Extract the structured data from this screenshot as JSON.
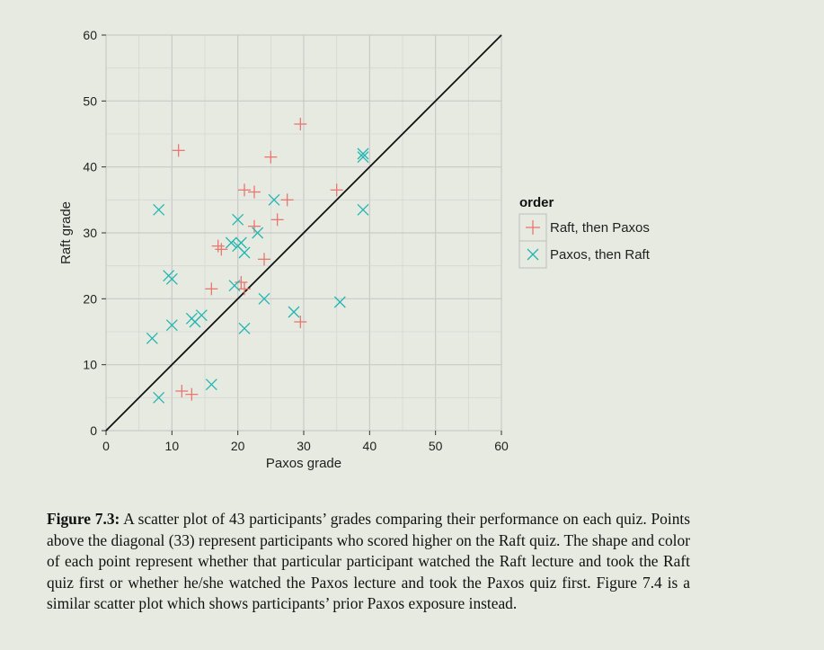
{
  "chart_data": {
    "type": "scatter",
    "xlabel": "Paxos grade",
    "ylabel": "Raft grade",
    "xlim": [
      0,
      60
    ],
    "ylim": [
      0,
      60
    ],
    "xticks": [
      "0",
      "10",
      "20",
      "30",
      "40",
      "50",
      "60"
    ],
    "yticks": [
      "0",
      "10",
      "20",
      "30",
      "40",
      "50",
      "60"
    ],
    "grid": true,
    "reference_line": "diagonal y = x",
    "legend": {
      "title": "order",
      "placement": "right",
      "entries": [
        {
          "label": "Raft, then Paxos",
          "marker": "+",
          "color": "#e8776f"
        },
        {
          "label": "Paxos, then Raft",
          "marker": "x",
          "color": "#22b6b2"
        }
      ]
    },
    "series": [
      {
        "name": "Raft, then Paxos",
        "marker": "+",
        "color": "#e8776f",
        "points": [
          [
            11,
            42.5
          ],
          [
            29.5,
            46.5
          ],
          [
            25,
            41.5
          ],
          [
            21,
            36.5
          ],
          [
            22.5,
            36.2
          ],
          [
            27.5,
            35
          ],
          [
            35,
            36.5
          ],
          [
            26,
            32
          ],
          [
            22.5,
            31
          ],
          [
            17,
            28
          ],
          [
            17.5,
            27.5
          ],
          [
            24,
            26
          ],
          [
            16,
            21.5
          ],
          [
            20.5,
            22.5
          ],
          [
            21,
            21.5
          ],
          [
            29.5,
            16.5
          ],
          [
            11.5,
            6
          ],
          [
            13,
            5.5
          ]
        ]
      },
      {
        "name": "Paxos, then Raft",
        "marker": "x",
        "color": "#22b6b2",
        "points": [
          [
            39,
            42
          ],
          [
            39,
            41.5
          ],
          [
            8,
            33.5
          ],
          [
            39,
            33.5
          ],
          [
            25.5,
            35
          ],
          [
            20,
            32
          ],
          [
            23,
            30
          ],
          [
            19,
            28.5
          ],
          [
            20,
            28
          ],
          [
            20.5,
            28.5
          ],
          [
            21,
            27
          ],
          [
            9.5,
            23.5
          ],
          [
            10,
            23
          ],
          [
            19.5,
            22
          ],
          [
            24,
            20
          ],
          [
            35.5,
            19.5
          ],
          [
            28.5,
            18
          ],
          [
            10,
            16
          ],
          [
            13,
            17
          ],
          [
            13.5,
            16.5
          ],
          [
            14.5,
            17.5
          ],
          [
            21,
            15.5
          ],
          [
            7,
            14
          ],
          [
            16,
            7
          ],
          [
            8,
            5
          ]
        ]
      }
    ]
  },
  "caption": {
    "label": "Figure 7.3:",
    "text": "A scatter plot of 43 participants’ grades comparing their performance on each quiz. Points above the diagonal (33) represent participants who scored higher on the Raft quiz. The shape and color of each point represent whether that particular participant watched the Raft lecture and took the Raft quiz first or whether he/she watched the Paxos lecture and took the Paxos quiz first. Figure 7.4 is a similar scatter plot which shows participants’ prior Paxos exposure instead."
  }
}
